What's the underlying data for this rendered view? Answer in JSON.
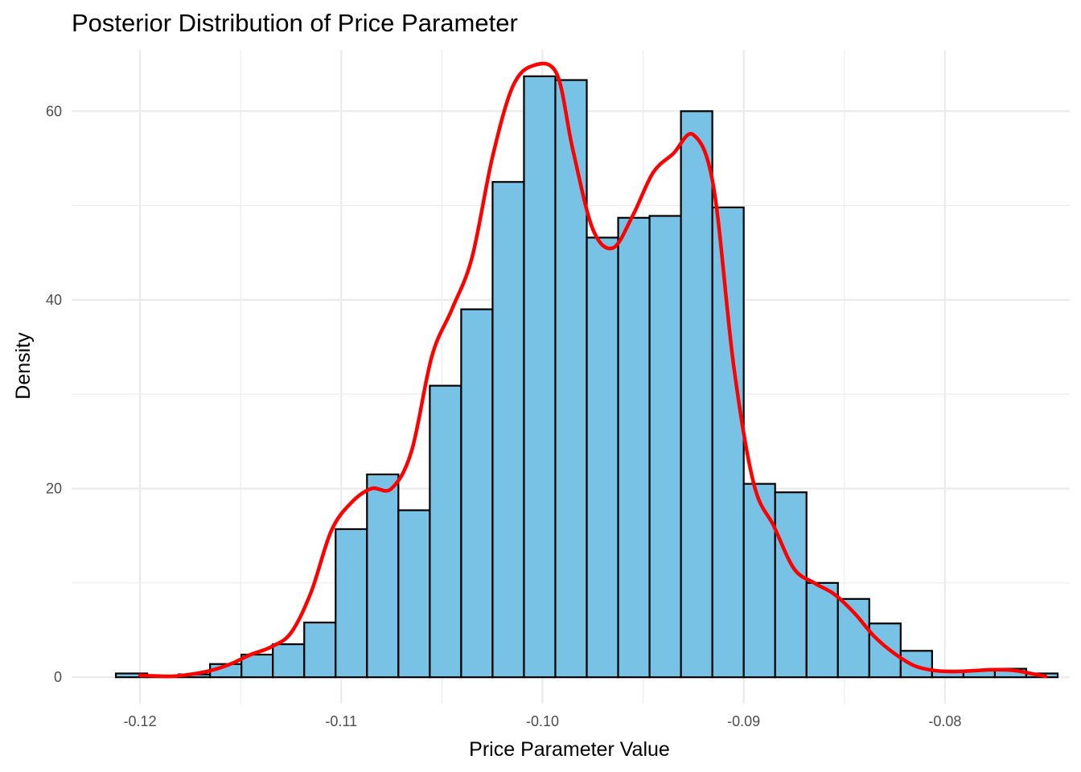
{
  "chart_data": {
    "type": "bar",
    "title": "Posterior Distribution of Price Parameter",
    "xlabel": "Price Parameter Value",
    "ylabel": "Density",
    "xlim": [
      -0.1234,
      -0.0738
    ],
    "ylim": [
      -2.8,
      66.5
    ],
    "x_ticks": [
      -0.12,
      -0.11,
      -0.1,
      -0.09,
      -0.08
    ],
    "x_tick_labels": [
      "-0.12",
      "-0.11",
      "-0.10",
      "-0.09",
      "-0.08"
    ],
    "y_ticks": [
      0,
      20,
      40,
      60
    ],
    "y_tick_labels": [
      "0",
      "20",
      "40",
      "60"
    ],
    "grid": true,
    "legend": "none",
    "colors": {
      "bar_fill": "#77C2E5",
      "bar_outline": "#000000",
      "density_line": "#FF0000"
    },
    "histogram": {
      "bin_width": 0.00156,
      "bin_starts": [
        -0.1212,
        -0.11964,
        -0.11808,
        -0.11652,
        -0.11496,
        -0.1134,
        -0.11184,
        -0.11028,
        -0.10872,
        -0.10716,
        -0.1056,
        -0.10404,
        -0.10248,
        -0.10092,
        -0.09936,
        -0.0978,
        -0.09624,
        -0.09468,
        -0.09312,
        -0.09156,
        -0.09,
        -0.08844,
        -0.08688,
        -0.08532,
        -0.08376,
        -0.0822,
        -0.08064,
        -0.07908,
        -0.07752,
        -0.07596
      ],
      "densities": [
        0.4,
        0.1,
        0.3,
        1.4,
        2.4,
        3.5,
        5.8,
        15.7,
        21.5,
        17.7,
        30.9,
        39.0,
        52.5,
        63.7,
        63.3,
        46.6,
        48.7,
        48.9,
        60.0,
        49.8,
        20.5,
        19.6,
        10.0,
        8.3,
        5.7,
        2.8,
        0.7,
        0.7,
        0.9,
        0.4
      ]
    },
    "density_curve": {
      "x": [
        -0.12,
        -0.1185,
        -0.1175,
        -0.1165,
        -0.1155,
        -0.1145,
        -0.1135,
        -0.1125,
        -0.1115,
        -0.1105,
        -0.1095,
        -0.1085,
        -0.1075,
        -0.1065,
        -0.1055,
        -0.1045,
        -0.1035,
        -0.1025,
        -0.1015,
        -0.1005,
        -0.0993,
        -0.0985,
        -0.0975,
        -0.0965,
        -0.0955,
        -0.0945,
        -0.0935,
        -0.0925,
        -0.0915,
        -0.0905,
        -0.0895,
        -0.0885,
        -0.0875,
        -0.0865,
        -0.0855,
        -0.0845,
        -0.0835,
        -0.0825,
        -0.0815,
        -0.0805,
        -0.0795,
        -0.0785,
        -0.0775,
        -0.0765,
        -0.0755,
        -0.075
      ],
      "y": [
        0.2,
        0.1,
        0.3,
        0.7,
        1.4,
        2.4,
        3.2,
        4.7,
        9.0,
        15.5,
        18.5,
        20.0,
        20.0,
        24.0,
        34.0,
        39.0,
        44.5,
        55.0,
        62.5,
        64.8,
        64.0,
        56.0,
        47.5,
        45.5,
        49.0,
        53.5,
        55.5,
        57.5,
        52.0,
        33.0,
        20.5,
        16.0,
        11.5,
        10.0,
        8.8,
        6.8,
        4.3,
        2.5,
        1.2,
        0.7,
        0.6,
        0.7,
        0.8,
        0.7,
        0.3,
        0.1
      ]
    }
  }
}
